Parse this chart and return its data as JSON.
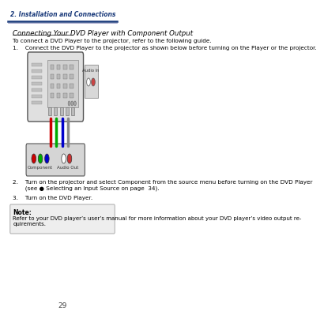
{
  "header_text": "2. Installation and Connections",
  "header_line_color": "#1a3a7a",
  "title": "Connecting Your DVD Player with Component Output",
  "intro": "To connect a DVD Player to the projector, refer to the following guide.",
  "step1": "1.    Connect the DVD Player to the projector as shown below before turning on the Player or the projector.",
  "step2": "2.    Turn on the projector and select Component from the source menu before turning on the DVD Player\n       (see ● Selecting an Input Source on page  34).",
  "step3": "3.    Turn on the DVD Player.",
  "note_label": "Note:",
  "note_text": "Refer to your DVD player’s user’s manual for more information about your DVD player’s video output re-\nquirements.",
  "page_number": "29",
  "bg_color": "#ffffff",
  "text_color": "#000000",
  "header_text_color": "#1a3a7a",
  "note_box_color": "#eeeeee",
  "note_border_color": "#aaaaaa",
  "cable_colors": [
    "#cc0000",
    "#00aa00",
    "#0000cc",
    "#888888"
  ],
  "conn_colors": [
    "#cc0000",
    "#00aa00",
    "#0000cc"
  ]
}
